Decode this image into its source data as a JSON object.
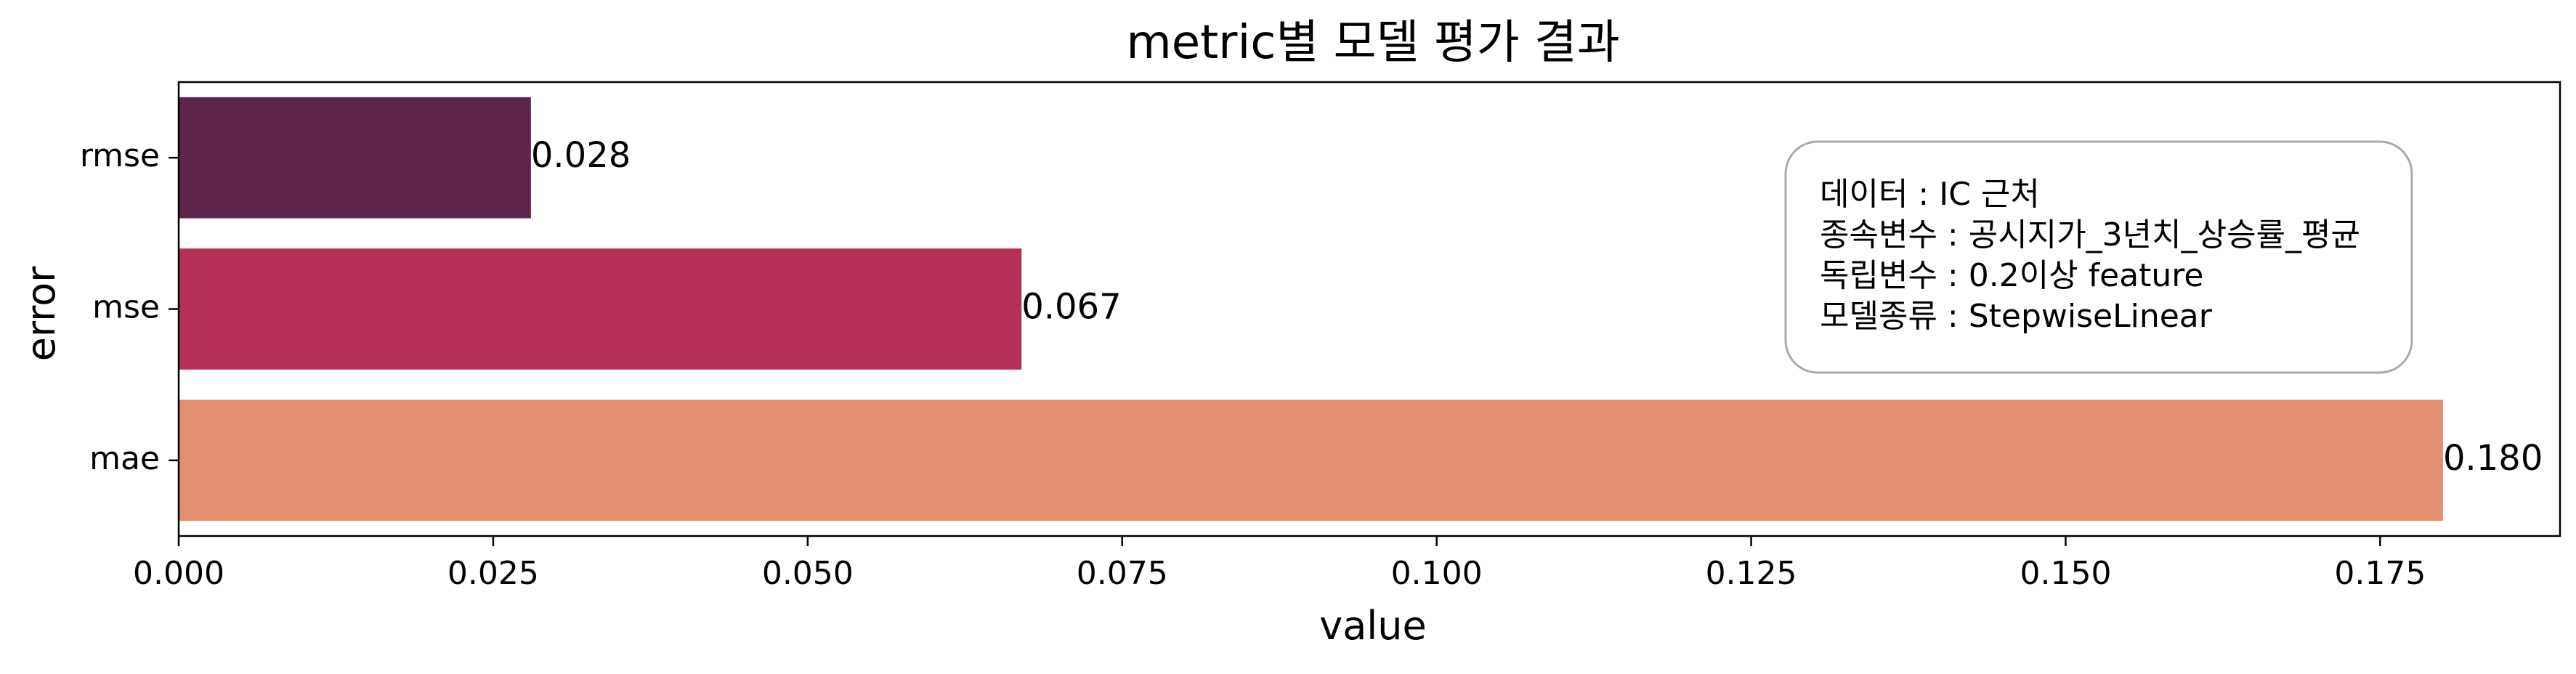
{
  "chart_data": {
    "type": "bar",
    "orientation": "horizontal",
    "title": "metric별 모델 평가 결과",
    "xlabel": "value",
    "ylabel": "error",
    "categories": [
      "rmse",
      "mse",
      "mae"
    ],
    "values": [
      0.028,
      0.067,
      0.18
    ],
    "value_labels": [
      "0.028",
      "0.067",
      "0.180"
    ],
    "colors": [
      "#5c2549",
      "#b53056",
      "#e28f72"
    ],
    "xlim": [
      0,
      0.1893
    ],
    "x_ticks": [
      0.0,
      0.025,
      0.05,
      0.075,
      0.1,
      0.125,
      0.15,
      0.175
    ],
    "x_tick_labels": [
      "0.000",
      "0.025",
      "0.050",
      "0.075",
      "0.100",
      "0.125",
      "0.150",
      "0.175"
    ],
    "grid": false,
    "annotation": {
      "lines": [
        "데이터 : IC 근처",
        "종속변수 : 공시지가_3년치_상승률_평균",
        "독립변수 : 0.2이상 feature",
        "모델종류 : StepwiseLinear"
      ]
    }
  }
}
